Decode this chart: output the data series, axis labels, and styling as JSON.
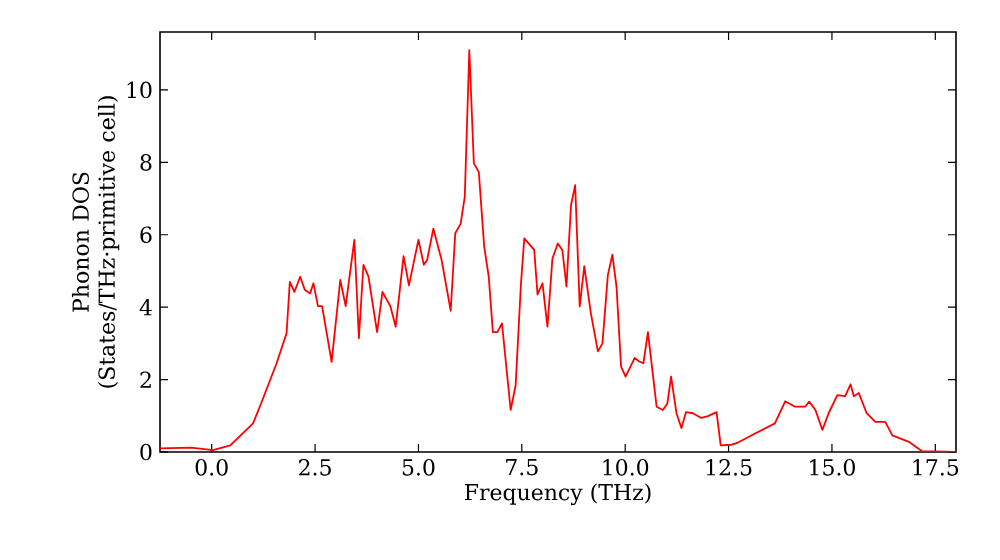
{
  "chart_data": {
    "type": "line",
    "xlabel": "Frequency (THz)",
    "ylabel": "Phonon DOS (States/THz·primitive cell)",
    "xlim": [
      -1.25,
      18.0
    ],
    "ylim": [
      0,
      11.6
    ],
    "xticks": [
      {
        "value": 0,
        "label": "0.0"
      },
      {
        "value": 2.5,
        "label": "2.5"
      },
      {
        "value": 5,
        "label": "5.0"
      },
      {
        "value": 7.5,
        "label": "7.5"
      },
      {
        "value": 10,
        "label": "10.0"
      },
      {
        "value": 12.5,
        "label": "12.5"
      },
      {
        "value": 15,
        "label": "15.0"
      },
      {
        "value": 17.5,
        "label": "17.5"
      }
    ],
    "yticks": [
      0,
      2,
      4,
      6,
      8,
      10
    ],
    "marker": "none",
    "line_style": "solid",
    "grid": false,
    "series": [
      {
        "color": "#ff0000",
        "x": [
          -1.25,
          -0.5,
          0.03,
          0.45,
          1.0,
          1.17,
          1.57,
          1.81,
          1.89,
          2.0,
          2.14,
          2.25,
          2.38,
          2.46,
          2.57,
          2.67,
          2.9,
          3.11,
          3.24,
          3.45,
          3.56,
          3.67,
          3.79,
          4.0,
          4.13,
          4.32,
          4.45,
          4.64,
          4.77,
          5.0,
          5.13,
          5.21,
          5.36,
          5.56,
          5.78,
          5.89,
          6.02,
          6.12,
          6.23,
          6.34,
          6.46,
          6.59,
          6.7,
          6.8,
          6.91,
          7.02,
          7.23,
          7.35,
          7.48,
          7.56,
          7.8,
          7.88,
          8.0,
          8.12,
          8.24,
          8.37,
          8.48,
          8.58,
          8.69,
          8.79,
          8.9,
          9.01,
          9.17,
          9.34,
          9.45,
          9.58,
          9.69,
          9.79,
          9.9,
          10.01,
          10.23,
          10.34,
          10.44,
          10.55,
          10.76,
          10.91,
          11.02,
          11.11,
          11.24,
          11.36,
          11.47,
          11.64,
          11.84,
          12.0,
          12.21,
          12.31,
          12.57,
          12.73,
          13.14,
          13.62,
          13.87,
          14.11,
          14.35,
          14.45,
          14.6,
          14.77,
          14.92,
          15.13,
          15.32,
          15.45,
          15.53,
          15.65,
          15.84,
          16.05,
          16.29,
          16.46,
          16.86,
          17.18,
          18.0
        ],
        "values": [
          0.1,
          0.12,
          0.05,
          0.18,
          0.79,
          1.27,
          2.45,
          3.28,
          4.7,
          4.42,
          4.84,
          4.48,
          4.38,
          4.66,
          4.03,
          4.03,
          2.49,
          4.75,
          4.03,
          5.86,
          3.14,
          5.17,
          4.85,
          3.31,
          4.42,
          4.03,
          3.46,
          5.41,
          4.6,
          5.86,
          5.17,
          5.3,
          6.17,
          5.3,
          3.9,
          6.04,
          6.3,
          7.05,
          11.1,
          7.97,
          7.73,
          5.67,
          4.84,
          3.31,
          3.31,
          3.55,
          1.16,
          1.84,
          4.66,
          5.9,
          5.58,
          4.35,
          4.66,
          3.46,
          5.34,
          5.76,
          5.58,
          4.57,
          6.82,
          7.37,
          4.02,
          5.13,
          3.83,
          2.78,
          3.0,
          4.88,
          5.45,
          4.57,
          2.36,
          2.08,
          2.6,
          2.5,
          2.45,
          3.31,
          1.25,
          1.16,
          1.34,
          2.08,
          1.07,
          0.66,
          1.1,
          1.07,
          0.94,
          0.99,
          1.1,
          0.18,
          0.2,
          0.26,
          0.51,
          0.79,
          1.4,
          1.25,
          1.25,
          1.39,
          1.16,
          0.61,
          1.07,
          1.57,
          1.54,
          1.87,
          1.54,
          1.63,
          1.07,
          0.83,
          0.83,
          0.46,
          0.28,
          0.02,
          0.0
        ]
      }
    ]
  }
}
